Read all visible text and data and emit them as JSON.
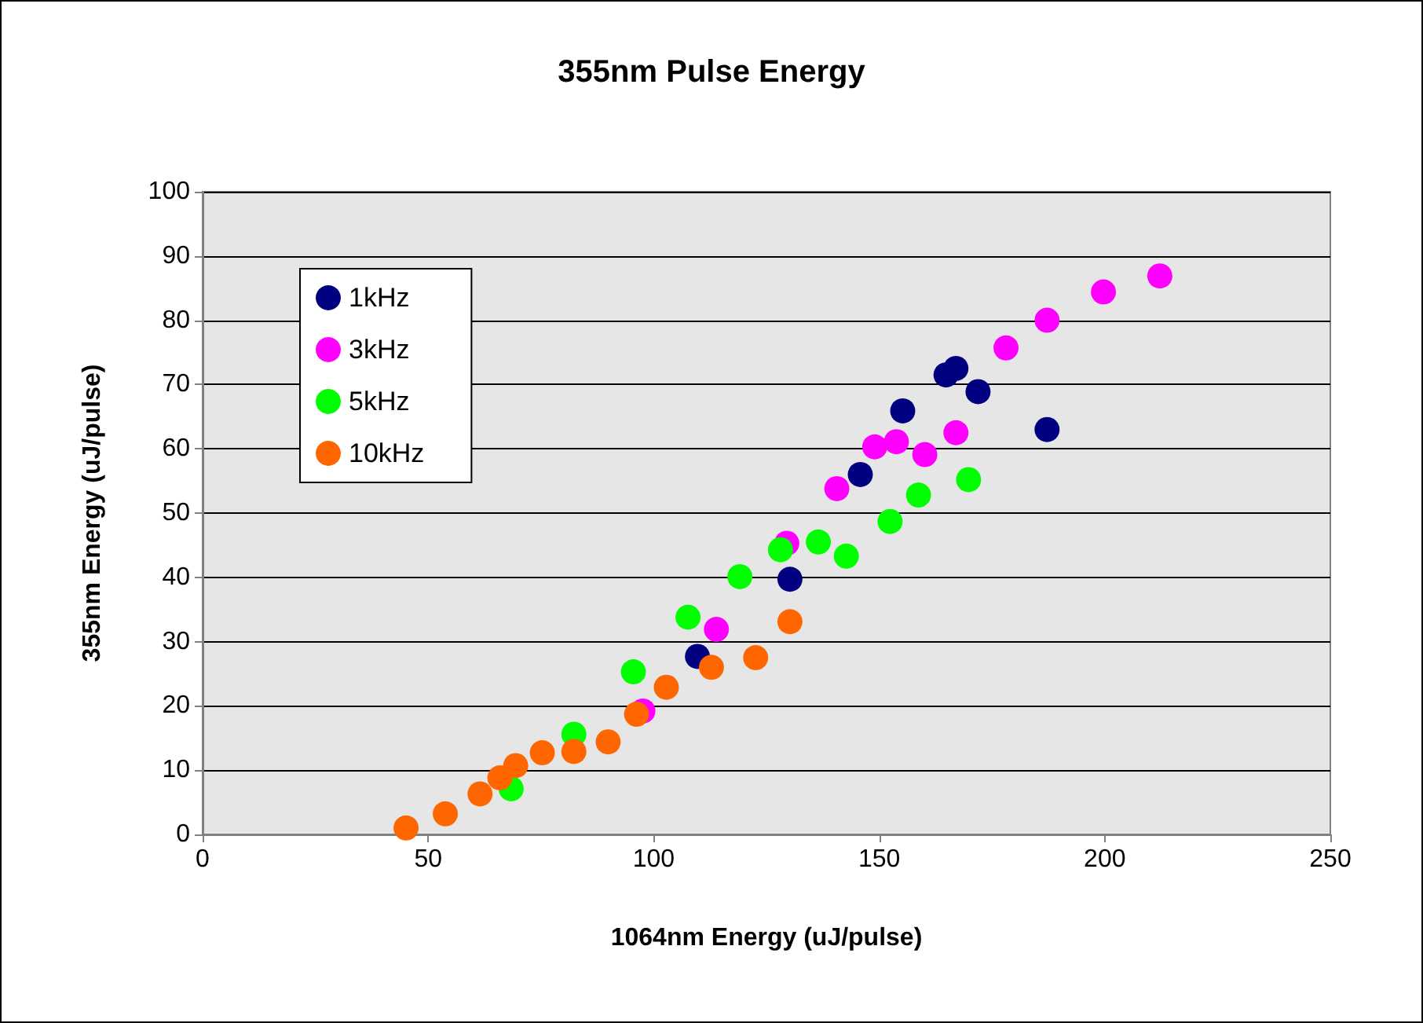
{
  "chart_data": {
    "type": "scatter",
    "title": "355nm Pulse Energy",
    "xlabel": "1064nm Energy (uJ/pulse)",
    "ylabel": "355nm Energy (uJ/pulse)",
    "xlim": [
      0,
      250
    ],
    "xticks": [
      0,
      50,
      100,
      150,
      200,
      250
    ],
    "ylim": [
      0,
      100
    ],
    "yticks": [
      0,
      10,
      20,
      30,
      40,
      50,
      60,
      70,
      80,
      90,
      100
    ],
    "grid": "y",
    "legend": "top left",
    "marker": "circle",
    "series": [
      {
        "name": "1kHz",
        "color": "#000080",
        "x": [
          109.7,
          130.2,
          145.8,
          155.2,
          164.8,
          167.0,
          171.9,
          187.2
        ],
        "values": [
          27.7,
          39.7,
          56.0,
          65.9,
          71.5,
          72.5,
          68.9,
          63.0
        ]
      },
      {
        "name": "3kHz",
        "color": "#ff00ff",
        "x": [
          97.6,
          113.9,
          129.5,
          140.6,
          149.0,
          153.8,
          160.1,
          167.0,
          178.1,
          187.2,
          199.7,
          212.2
        ],
        "values": [
          19.2,
          31.9,
          45.3,
          53.8,
          60.3,
          61.1,
          59.1,
          62.5,
          75.7,
          80.0,
          84.4,
          86.9
        ]
      },
      {
        "name": "5kHz",
        "color": "#00ff00",
        "x": [
          68.4,
          82.3,
          95.5,
          107.6,
          119.1,
          128.1,
          136.5,
          142.7,
          152.4,
          158.7,
          169.8
        ],
        "values": [
          7.1,
          15.6,
          25.3,
          33.8,
          40.1,
          44.3,
          45.5,
          43.3,
          48.7,
          52.8,
          55.2
        ]
      },
      {
        "name": "10kHz",
        "color": "#ff6600",
        "x": [
          45.1,
          53.8,
          61.5,
          65.9,
          69.4,
          75.3,
          82.3,
          89.9,
          96.2,
          102.8,
          112.8,
          122.6,
          130.2
        ],
        "values": [
          1.0,
          3.2,
          6.3,
          8.8,
          10.7,
          12.7,
          12.9,
          14.4,
          18.7,
          22.9,
          26.0,
          27.5,
          33.1
        ]
      }
    ]
  }
}
